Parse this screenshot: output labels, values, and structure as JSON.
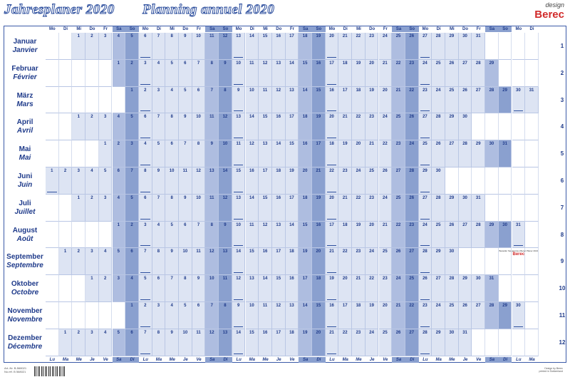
{
  "title_de": "Jahresplaner 2020",
  "title_fr": "Planning annuel 2020",
  "brand": {
    "design": "design",
    "name": "Berec"
  },
  "weekdays_top": [
    "Mo",
    "Di",
    "Mi",
    "Do",
    "Fr",
    "Sa",
    "So"
  ],
  "weekdays_bottom": [
    "Lu",
    "Ma",
    "Me",
    "Je",
    "Ve",
    "Sa",
    "Di"
  ],
  "months": [
    {
      "de": "Januar",
      "fr": "Janvier",
      "num": "1",
      "start": 2,
      "days": 31
    },
    {
      "de": "Februar",
      "fr": "Février",
      "num": "2",
      "start": 5,
      "days": 29
    },
    {
      "de": "März",
      "fr": "Mars",
      "num": "3",
      "start": 6,
      "days": 31
    },
    {
      "de": "April",
      "fr": "Avril",
      "num": "4",
      "start": 2,
      "days": 30
    },
    {
      "de": "Mai",
      "fr": "Mai",
      "num": "5",
      "start": 4,
      "days": 31
    },
    {
      "de": "Juni",
      "fr": "Juin",
      "num": "6",
      "start": 0,
      "days": 30
    },
    {
      "de": "Juli",
      "fr": "Juillet",
      "num": "7",
      "start": 2,
      "days": 31
    },
    {
      "de": "August",
      "fr": "Août",
      "num": "8",
      "start": 5,
      "days": 31
    },
    {
      "de": "September",
      "fr": "Septembre",
      "num": "9",
      "start": 1,
      "days": 30
    },
    {
      "de": "Oktober",
      "fr": "Octobre",
      "num": "10",
      "start": 3,
      "days": 31
    },
    {
      "de": "November",
      "fr": "Novembre",
      "num": "11",
      "start": 6,
      "days": 30
    },
    {
      "de": "Dezember",
      "fr": "Décembre",
      "num": "12",
      "start": 1,
      "days": 31
    }
  ],
  "side_note": "Besteller Sie jetzt den Berec Planer 2021",
  "side_brand": "Berec",
  "footer_left": [
    "Art.-Nr. B-568021",
    "No.réf. B 568021"
  ],
  "footer_right": [
    "Design by Berec",
    "printed in Switzerland"
  ]
}
